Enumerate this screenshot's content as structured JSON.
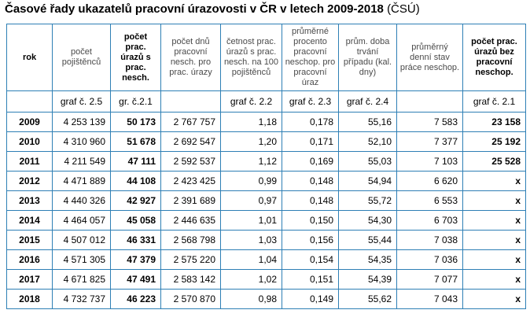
{
  "title": {
    "main": "Časové řady ukazatelů pracovní úrazovosti v ČR v letech 2009-2018",
    "source": "(ČSÚ)"
  },
  "headers": [
    "rok",
    "počet pojištěnců",
    "počet prac. úrazů s prac. nesch.",
    "počet dnů pracovní nesch. pro prac. úrazy",
    "četnost prac. úrazů s prac. nesch. na 100 pojištěnců",
    "průměrné procento pracovní neschop. pro pracovní úraz",
    "prům. doba trvání případu (kal. dny)",
    "průměrný denní stav práce neschop.",
    "počet prac. úrazů bez pracovní neschop."
  ],
  "graph_refs": [
    "",
    "graf č. 2.5",
    "gr. č.2.1",
    "",
    "graf č. 2.2",
    "graf č. 2.3",
    "graf č. 2.4",
    "",
    "graf č. 2.1"
  ],
  "rows": [
    [
      "2009",
      "4 253 139",
      "50 173",
      "2 767 757",
      "1,18",
      "0,178",
      "55,16",
      "7 583",
      "23 158"
    ],
    [
      "2010",
      "4 310 960",
      "51 678",
      "2 692 547",
      "1,20",
      "0,171",
      "52,10",
      "7 377",
      "25 192"
    ],
    [
      "2011",
      "4 211 549",
      "47 111",
      "2 592 537",
      "1,12",
      "0,169",
      "55,03",
      "7 103",
      "25 528"
    ],
    [
      "2012",
      "4 471 889",
      "44 108",
      "2 423 425",
      "0,99",
      "0,148",
      "54,94",
      "6 620",
      "x"
    ],
    [
      "2013",
      "4 440 326",
      "42 927",
      "2 391 689",
      "0,97",
      "0,148",
      "55,72",
      "6 553",
      "x"
    ],
    [
      "2014",
      "4 464 057",
      "45 058",
      "2 446 635",
      "1,01",
      "0,150",
      "54,30",
      "6 703",
      "x"
    ],
    [
      "2015",
      "4 507 012",
      "46 331",
      "2 568 798",
      "1,03",
      "0,156",
      "55,44",
      "7 038",
      "x"
    ],
    [
      "2016",
      "4 571 305",
      "47 379",
      "2 575 220",
      "1,04",
      "0,154",
      "54,35",
      "7 036",
      "x"
    ],
    [
      "2017",
      "4 671 825",
      "47 491",
      "2 583 142",
      "1,02",
      "0,151",
      "54,39",
      "7 077",
      "x"
    ],
    [
      "2018",
      "4 732 737",
      "46 223",
      "2 570 870",
      "0,98",
      "0,149",
      "55,62",
      "7 043",
      "x"
    ]
  ],
  "colors": {
    "border": "#2e7fb5",
    "header_text": "#4a4a4a"
  }
}
